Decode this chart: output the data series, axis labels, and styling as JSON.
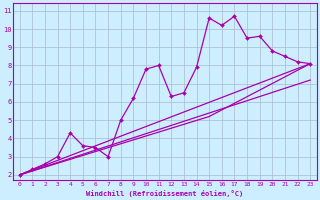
{
  "xlabel": "Windchill (Refroidissement éolien,°C)",
  "bg_color": "#cceeff",
  "line_color": "#aa00aa",
  "grid_color": "#aabbcc",
  "xlim": [
    -0.5,
    23.5
  ],
  "ylim": [
    1.7,
    11.4
  ],
  "xticks": [
    0,
    1,
    2,
    3,
    4,
    5,
    6,
    7,
    8,
    9,
    10,
    11,
    12,
    13,
    14,
    15,
    16,
    17,
    18,
    19,
    20,
    21,
    22,
    23
  ],
  "yticks": [
    2,
    3,
    4,
    5,
    6,
    7,
    8,
    9,
    10,
    11
  ],
  "line1_x": [
    0,
    1,
    2,
    3,
    4,
    5,
    6,
    7,
    8,
    9,
    10,
    11,
    12,
    13,
    14,
    15,
    16,
    17,
    18,
    19,
    20,
    21,
    22,
    23
  ],
  "line1_y": [
    2.0,
    2.3,
    2.6,
    3.0,
    4.3,
    3.6,
    3.5,
    3.0,
    5.0,
    6.2,
    7.8,
    8.0,
    6.3,
    6.5,
    7.9,
    10.6,
    10.2,
    10.7,
    9.5,
    9.6,
    8.8,
    8.5,
    8.2,
    8.1
  ],
  "line2_x": [
    0,
    23
  ],
  "line2_y": [
    2.0,
    7.2
  ],
  "line3_x": [
    0,
    23
  ],
  "line3_y": [
    2.0,
    8.1
  ],
  "line4_x": [
    0,
    15,
    23
  ],
  "line4_y": [
    2.0,
    5.2,
    8.1
  ]
}
